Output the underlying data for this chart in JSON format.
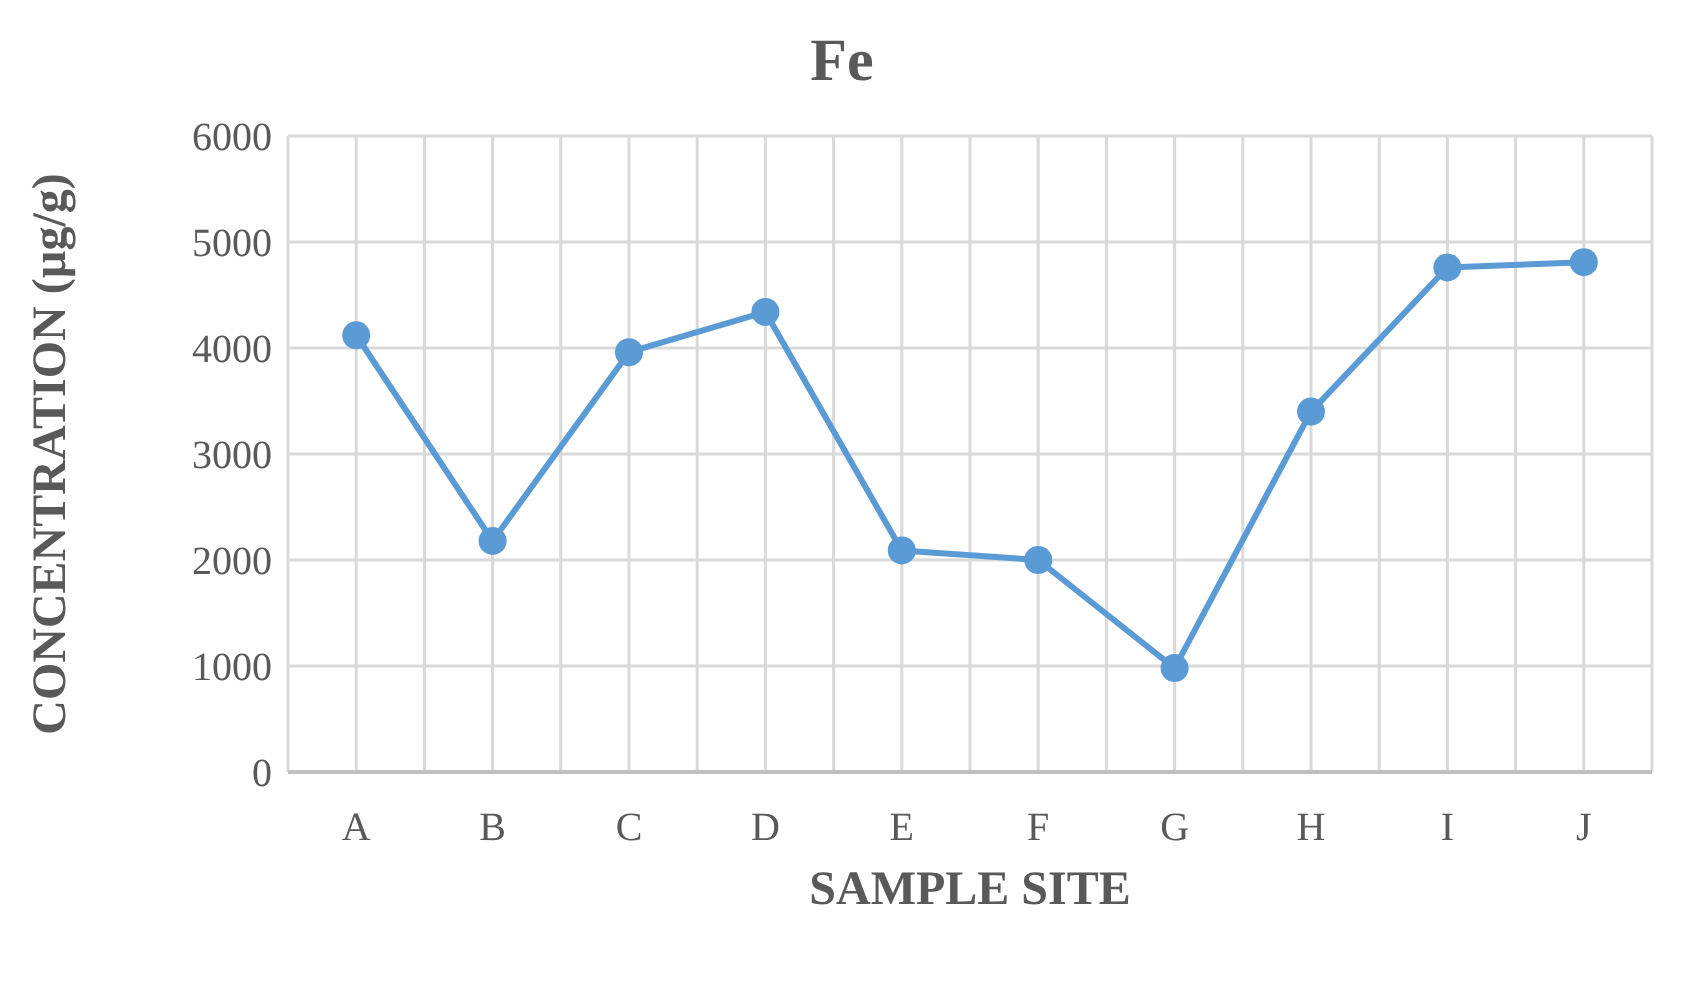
{
  "chart_data": {
    "type": "line",
    "title": "Fe",
    "xlabel": "SAMPLE SITE",
    "ylabel": "CONCENTRATION (µg/g)",
    "categories": [
      "A",
      "B",
      "C",
      "D",
      "E",
      "F",
      "G",
      "H",
      "I",
      "J"
    ],
    "series": [
      {
        "color": "#5b9bd5",
        "values": [
          4120,
          2180,
          3960,
          4340,
          2090,
          2000,
          980,
          3400,
          4760,
          4810
        ]
      }
    ],
    "ylim": [
      0,
      6000
    ],
    "yticks": [
      0,
      1000,
      2000,
      3000,
      4000,
      5000,
      6000
    ],
    "grid": true,
    "marker": "circle",
    "line_style": "solid"
  }
}
